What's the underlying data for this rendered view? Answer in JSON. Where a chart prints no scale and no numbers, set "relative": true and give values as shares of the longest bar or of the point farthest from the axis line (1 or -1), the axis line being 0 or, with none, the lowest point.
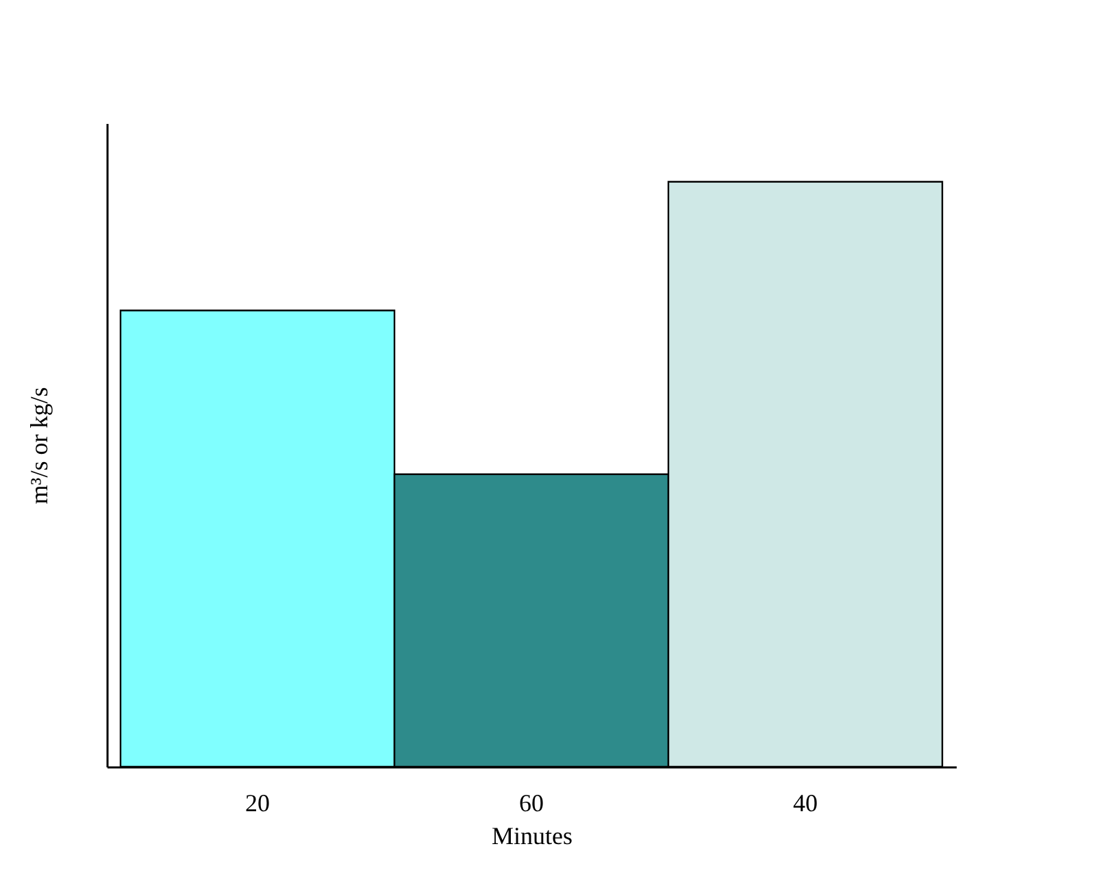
{
  "chart_data": {
    "type": "bar",
    "relative": true,
    "ylabel": "m³/s or kg/s",
    "xlabel": "Minutes",
    "categories": [
      "20",
      "60",
      "40"
    ],
    "values": [
      0.78,
      0.5,
      1
    ],
    "colors": [
      "#80ffff",
      "#2e8b8b",
      "#cfe8e6"
    ],
    "grid": false,
    "legend": false
  }
}
